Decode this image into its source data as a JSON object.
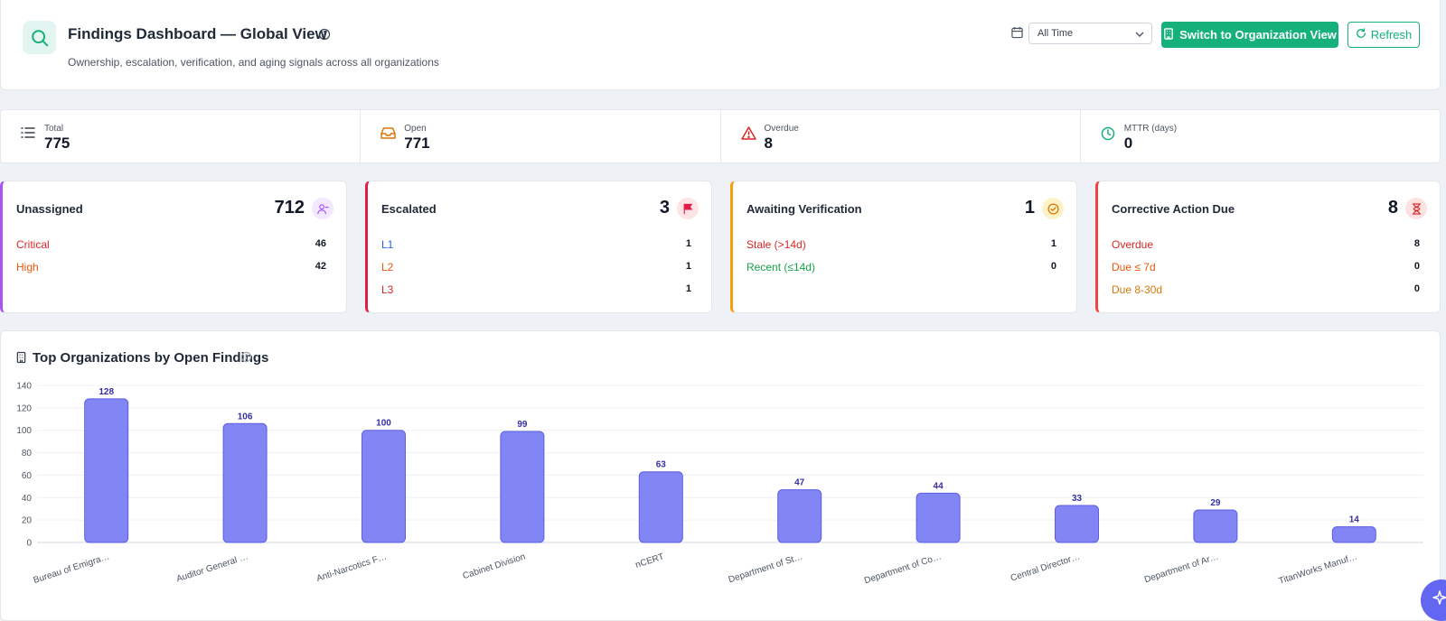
{
  "header": {
    "title": "Findings Dashboard — Global View",
    "subtitle": "Ownership, escalation, verification, and aging signals across all organizations",
    "time_filter": "All Time",
    "switch_button": "Switch to Organization View",
    "refresh_button": "Refresh"
  },
  "stats": [
    {
      "label": "Total",
      "value": "775"
    },
    {
      "label": "Open",
      "value": "771"
    },
    {
      "label": "Overdue",
      "value": "8"
    },
    {
      "label": "MTTR (days)",
      "value": "0"
    }
  ],
  "cards": {
    "unassigned": {
      "title": "Unassigned",
      "count": "712",
      "rows": [
        {
          "label": "Critical",
          "value": "46"
        },
        {
          "label": "High",
          "value": "42"
        }
      ]
    },
    "escalated": {
      "title": "Escalated",
      "count": "3",
      "rows": [
        {
          "label": "L1",
          "value": "1"
        },
        {
          "label": "L2",
          "value": "1"
        },
        {
          "label": "L3",
          "value": "1"
        }
      ]
    },
    "verification": {
      "title": "Awaiting Verification",
      "count": "1",
      "rows": [
        {
          "label": "Stale (>14d)",
          "value": "1"
        },
        {
          "label": "Recent (≤14d)",
          "value": "0"
        }
      ]
    },
    "corrective": {
      "title": "Corrective Action Due",
      "count": "8",
      "rows": [
        {
          "label": "Overdue",
          "value": "8"
        },
        {
          "label": "Due ≤ 7d",
          "value": "0"
        },
        {
          "label": "Due 8-30d",
          "value": "0"
        }
      ]
    }
  },
  "colors": {
    "accent": "#16b07a",
    "bar": "#8186f4",
    "bar_stroke": "#5b5fe0",
    "critical": "#dc2626",
    "high": "#ea580c",
    "l1": "#2563eb",
    "recent": "#16a34a",
    "due_orange": "#d97706"
  },
  "chart_panel": {
    "title": "Top Organizations by Open Findings"
  },
  "chart_data": {
    "type": "bar",
    "categories": [
      "Bureau of Emigra…",
      "Auditor General …",
      "Anti-Narcotics F…",
      "Cabinet Division",
      "nCERT",
      "Department of St…",
      "Department of Co…",
      "Central Director…",
      "Department of Ar…",
      "TitanWorks Manuf…"
    ],
    "values": [
      128,
      106,
      100,
      99,
      63,
      47,
      44,
      33,
      29,
      14
    ],
    "ylim": [
      0,
      140
    ],
    "yticks": [
      0,
      20,
      40,
      60,
      80,
      100,
      120,
      140
    ],
    "grid": true
  }
}
